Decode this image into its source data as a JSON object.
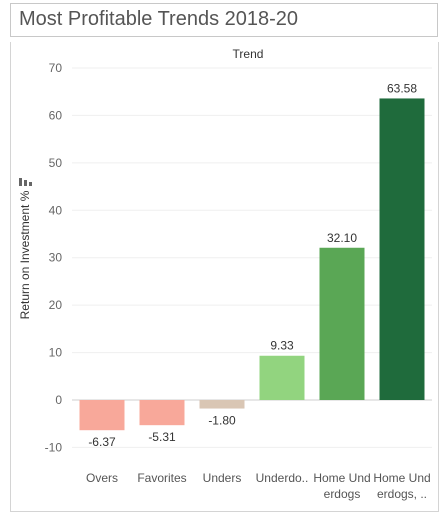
{
  "title": "Most Profitable Trends 2018-20",
  "chart_data": {
    "type": "bar",
    "column_header": "Trend",
    "ylabel": "Return on Investment %",
    "ylim": [
      -12,
      70
    ],
    "yticks": [
      -10,
      0,
      10,
      20,
      30,
      40,
      50,
      60,
      70
    ],
    "grid": true,
    "categories": [
      {
        "line1": "Overs",
        "line2": ""
      },
      {
        "line1": "Favorites",
        "line2": ""
      },
      {
        "line1": "Unders",
        "line2": ""
      },
      {
        "line1": "Underdo..",
        "line2": ""
      },
      {
        "line1": "Home Und",
        "line2": "erdogs"
      },
      {
        "line1": "Home Und",
        "line2": "erdogs, .."
      }
    ],
    "values": [
      -6.37,
      -5.31,
      -1.8,
      9.33,
      32.1,
      63.58
    ],
    "value_labels": [
      "-6.37",
      "-5.31",
      "-1.80",
      "9.33",
      "32.10",
      "63.58"
    ],
    "colors": [
      "#f8a89a",
      "#f8a89a",
      "#d9c6b4",
      "#92d47f",
      "#5aa755",
      "#1f6b3c"
    ]
  }
}
